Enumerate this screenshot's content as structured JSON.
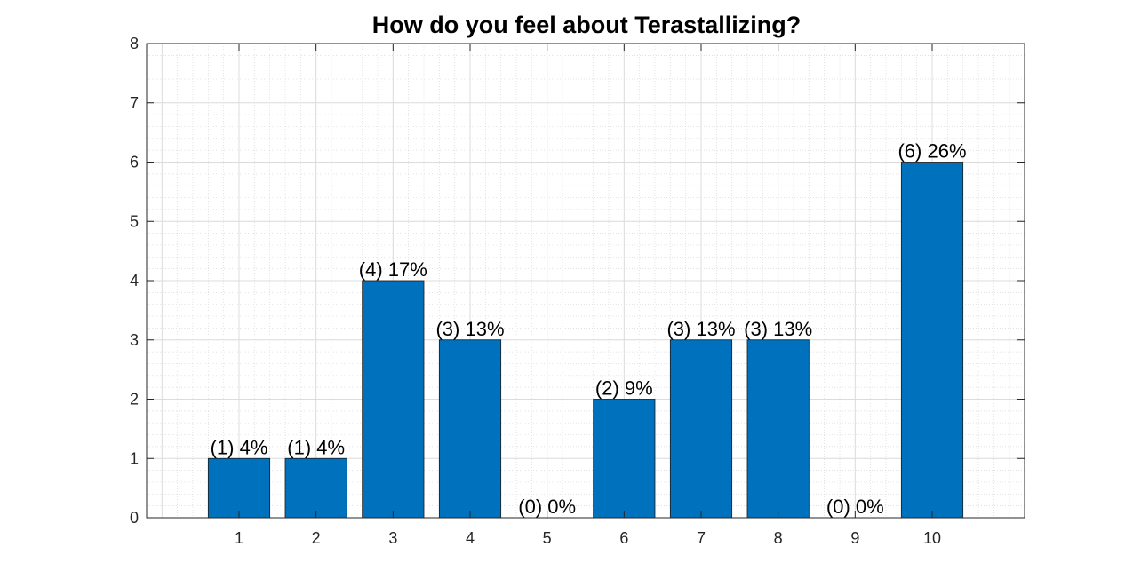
{
  "chart_data": {
    "type": "bar",
    "title": "How do you feel about Terastallizing?",
    "xlabel": "",
    "ylabel": "",
    "categories": [
      "1",
      "2",
      "3",
      "4",
      "5",
      "6",
      "7",
      "8",
      "9",
      "10"
    ],
    "values": [
      1,
      1,
      4,
      3,
      0,
      2,
      3,
      3,
      0,
      6
    ],
    "data_labels": [
      "(1) 4%",
      "(1) 4%",
      "(4) 17%",
      "(3) 13%",
      "(0) 0%",
      "(2) 9%",
      "(3) 13%",
      "(3) 13%",
      "(0) 0%",
      "(6) 26%"
    ],
    "xlim": [
      -0.2,
      11.2
    ],
    "ylim": [
      0,
      8
    ],
    "yticks": [
      0,
      1,
      2,
      3,
      4,
      5,
      6,
      7,
      8
    ],
    "grid": true,
    "minor_grid": true,
    "bar_color": "#0072BD"
  }
}
